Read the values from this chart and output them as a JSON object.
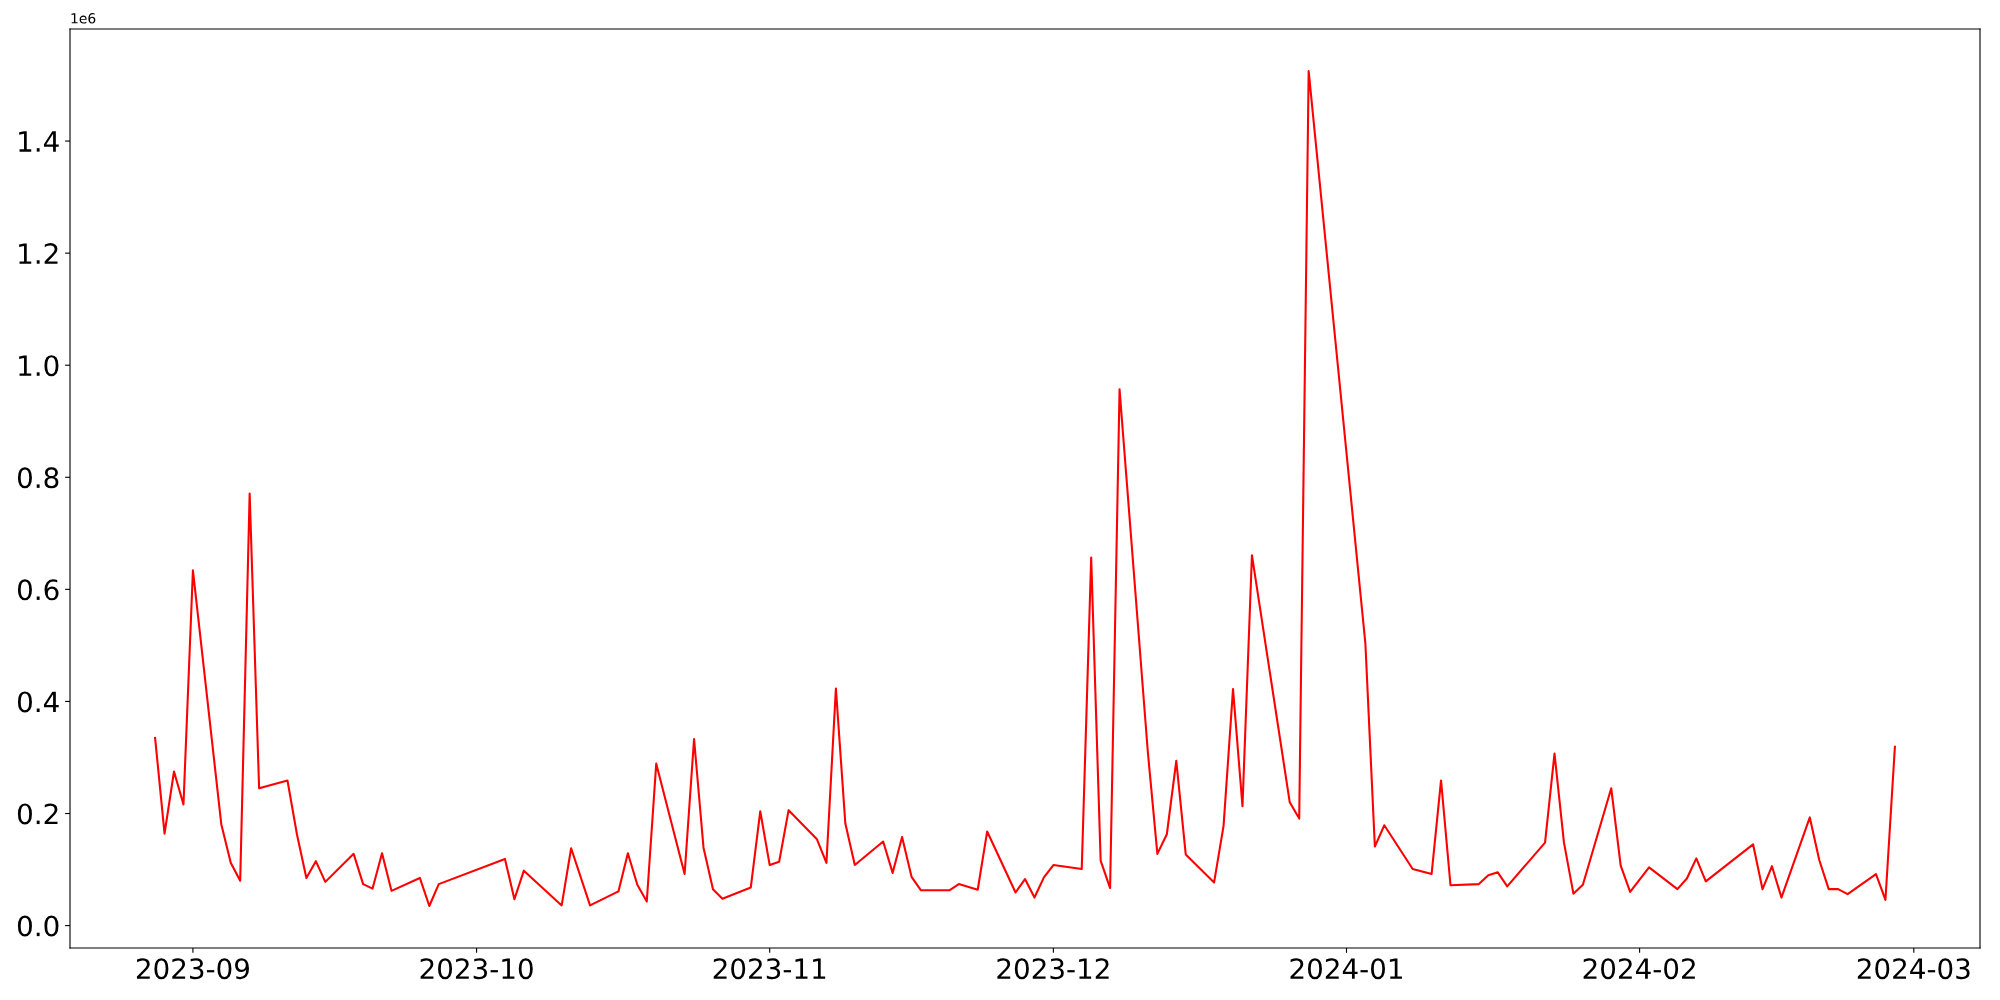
{
  "chart_data": {
    "type": "line",
    "annotations": [
      "1e6"
    ],
    "x": [
      "2023-08-28",
      "2023-08-29",
      "2023-08-30",
      "2023-08-31",
      "2023-09-01",
      "2023-09-04",
      "2023-09-05",
      "2023-09-06",
      "2023-09-07",
      "2023-09-08",
      "2023-09-11",
      "2023-09-12",
      "2023-09-13",
      "2023-09-14",
      "2023-09-15",
      "2023-09-18",
      "2023-09-19",
      "2023-09-20",
      "2023-09-21",
      "2023-09-22",
      "2023-09-25",
      "2023-09-26",
      "2023-09-27",
      "2023-10-04",
      "2023-10-05",
      "2023-10-06",
      "2023-10-10",
      "2023-10-11",
      "2023-10-13",
      "2023-10-16",
      "2023-10-17",
      "2023-10-18",
      "2023-10-19",
      "2023-10-20",
      "2023-10-23",
      "2023-10-24",
      "2023-10-25",
      "2023-10-26",
      "2023-10-27",
      "2023-10-30",
      "2023-10-31",
      "2023-11-01",
      "2023-11-02",
      "2023-11-03",
      "2023-11-06",
      "2023-11-07",
      "2023-11-08",
      "2023-11-09",
      "2023-11-10",
      "2023-11-13",
      "2023-11-14",
      "2023-11-15",
      "2023-11-16",
      "2023-11-17",
      "2023-11-20",
      "2023-11-21",
      "2023-11-23",
      "2023-11-24",
      "2023-11-27",
      "2023-11-28",
      "2023-11-29",
      "2023-11-30",
      "2023-12-01",
      "2023-12-04",
      "2023-12-05",
      "2023-12-06",
      "2023-12-07",
      "2023-12-08",
      "2023-12-11",
      "2023-12-12",
      "2023-12-13",
      "2023-12-14",
      "2023-12-15",
      "2023-12-18",
      "2023-12-19",
      "2023-12-20",
      "2023-12-21",
      "2023-12-22",
      "2023-12-26",
      "2023-12-27",
      "2023-12-28",
      "2024-01-03",
      "2024-01-04",
      "2024-01-05",
      "2024-01-08",
      "2024-01-10",
      "2024-01-11",
      "2024-01-12",
      "2024-01-15",
      "2024-01-16",
      "2024-01-17",
      "2024-01-18",
      "2024-01-22",
      "2024-01-23",
      "2024-01-24",
      "2024-01-25",
      "2024-01-26",
      "2024-01-29",
      "2024-01-30",
      "2024-01-31",
      "2024-02-02",
      "2024-02-05",
      "2024-02-06",
      "2024-02-07",
      "2024-02-08",
      "2024-02-13",
      "2024-02-14",
      "2024-02-15",
      "2024-02-16",
      "2024-02-19",
      "2024-02-20",
      "2024-02-21",
      "2024-02-22",
      "2024-02-23",
      "2024-02-26",
      "2024-02-27",
      "2024-02-28"
    ],
    "series": [
      {
        "color": "#ff0000",
        "values": [
          0.335,
          0.164,
          0.275,
          0.216,
          0.634,
          0.181,
          0.112,
          0.08,
          0.771,
          0.245,
          0.259,
          0.163,
          0.085,
          0.115,
          0.078,
          0.128,
          0.074,
          0.066,
          0.129,
          0.062,
          0.085,
          0.035,
          0.074,
          0.119,
          0.047,
          0.098,
          0.036,
          0.138,
          0.036,
          0.061,
          0.129,
          0.073,
          0.043,
          0.289,
          0.092,
          0.333,
          0.139,
          0.065,
          0.048,
          0.068,
          0.204,
          0.108,
          0.114,
          0.206,
          0.154,
          0.112,
          0.423,
          0.182,
          0.108,
          0.15,
          0.094,
          0.158,
          0.087,
          0.063,
          0.063,
          0.074,
          0.064,
          0.168,
          0.059,
          0.083,
          0.05,
          0.086,
          0.108,
          0.101,
          0.657,
          0.116,
          0.067,
          0.957,
          0.308,
          0.128,
          0.163,
          0.294,
          0.127,
          0.077,
          0.178,
          0.422,
          0.213,
          0.661,
          0.22,
          0.191,
          1.525,
          0.503,
          0.141,
          0.179,
          0.101,
          0.092,
          0.259,
          0.072,
          0.074,
          0.09,
          0.095,
          0.07,
          0.148,
          0.307,
          0.148,
          0.057,
          0.073,
          0.245,
          0.107,
          0.06,
          0.104,
          0.065,
          0.084,
          0.12,
          0.079,
          0.145,
          0.065,
          0.106,
          0.05,
          0.193,
          0.117,
          0.065,
          0.065,
          0.056,
          0.092,
          0.046,
          0.319
        ]
      }
    ],
    "xlim": [
      "2023-08-19",
      "2024-03-08"
    ],
    "xticks": [
      {
        "value": "2023-09-01",
        "label": "2023-09"
      },
      {
        "value": "2023-10-01",
        "label": "2023-10"
      },
      {
        "value": "2023-11-01",
        "label": "2023-11"
      },
      {
        "value": "2023-12-01",
        "label": "2023-12"
      },
      {
        "value": "2024-01-01",
        "label": "2024-01"
      },
      {
        "value": "2024-02-01",
        "label": "2024-02"
      },
      {
        "value": "2024-03-01",
        "label": "2024-03"
      }
    ],
    "ylim": [
      -0.04,
      1.6
    ],
    "yticks": [
      {
        "value": 0,
        "label": "0.0"
      },
      {
        "value": 0.2,
        "label": "0.2"
      },
      {
        "value": 0.4,
        "label": "0.4"
      },
      {
        "value": 0.6,
        "label": "0.6"
      },
      {
        "value": 0.8,
        "label": "0.8"
      },
      {
        "value": 1.0,
        "label": "1.0"
      },
      {
        "value": 1.2,
        "label": "1.2"
      },
      {
        "value": 1.4,
        "label": "1.4"
      }
    ],
    "grid": false,
    "marker": "none",
    "line_style": "solid"
  }
}
